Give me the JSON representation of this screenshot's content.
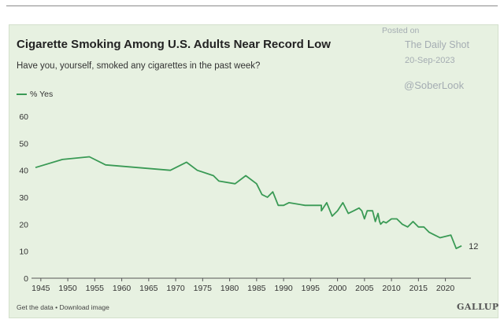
{
  "chart_data": {
    "type": "line",
    "title": "Cigarette Smoking Among U.S. Adults Near Record Low",
    "subtitle": "Have you, yourself, smoked any cigarettes in the past week?",
    "legend": [
      "% Yes"
    ],
    "xlabel": "",
    "ylabel": "",
    "xlim": [
      1944,
      2024
    ],
    "ylim": [
      0,
      60
    ],
    "x_ticks": [
      1945,
      1950,
      1955,
      1960,
      1965,
      1970,
      1975,
      1980,
      1985,
      1990,
      1995,
      2000,
      2005,
      2010,
      2015,
      2020
    ],
    "y_ticks": [
      0,
      10,
      20,
      30,
      40,
      50,
      60
    ],
    "grid": false,
    "series": [
      {
        "name": "% Yes",
        "color": "#3a9a55",
        "points": [
          [
            1944,
            41
          ],
          [
            1949,
            44
          ],
          [
            1954,
            45
          ],
          [
            1957,
            42
          ],
          [
            1969,
            40
          ],
          [
            1972,
            43
          ],
          [
            1974,
            40
          ],
          [
            1977,
            38
          ],
          [
            1978,
            36
          ],
          [
            1981,
            35
          ],
          [
            1983,
            38
          ],
          [
            1985,
            35
          ],
          [
            1986,
            31
          ],
          [
            1987,
            30
          ],
          [
            1988,
            32
          ],
          [
            1989,
            27
          ],
          [
            1990,
            27
          ],
          [
            1991,
            28
          ],
          [
            1994,
            27
          ],
          [
            1996,
            27
          ],
          [
            1997,
            27
          ],
          [
            1997,
            25
          ],
          [
            1998,
            28
          ],
          [
            1999,
            23
          ],
          [
            2000,
            25
          ],
          [
            2001,
            28
          ],
          [
            2002,
            24
          ],
          [
            2003,
            25
          ],
          [
            2004,
            26
          ],
          [
            2004.5,
            25
          ],
          [
            2005,
            22
          ],
          [
            2005.5,
            25
          ],
          [
            2006,
            25
          ],
          [
            2006.5,
            25
          ],
          [
            2007,
            21
          ],
          [
            2007.5,
            24
          ],
          [
            2007.8,
            21
          ],
          [
            2008,
            20
          ],
          [
            2008.5,
            21
          ],
          [
            2009,
            20.5
          ],
          [
            2010,
            22
          ],
          [
            2011,
            22
          ],
          [
            2012,
            20
          ],
          [
            2013,
            19
          ],
          [
            2014,
            21
          ],
          [
            2015,
            19
          ],
          [
            2016,
            19
          ],
          [
            2017,
            17
          ],
          [
            2018,
            16
          ],
          [
            2019,
            15
          ],
          [
            2021,
            16
          ],
          [
            2022,
            11
          ],
          [
            2023,
            12
          ]
        ],
        "end_label": "12"
      }
    ]
  },
  "watermark": {
    "posted": "Posted on",
    "source": "The Daily Shot",
    "date": "20-Sep-2023",
    "handle": "@SoberLook"
  },
  "footer": {
    "links": "Get the data • Download image",
    "brand": "GALLUP"
  }
}
